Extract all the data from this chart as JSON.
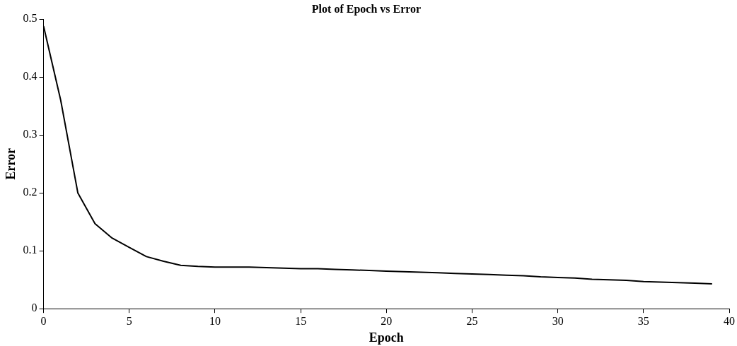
{
  "chart_data": {
    "type": "line",
    "title": "Plot of Epoch vs Error",
    "xlabel": "Epoch",
    "ylabel": "Error",
    "x": [
      0,
      1,
      2,
      3,
      4,
      5,
      6,
      7,
      8,
      9,
      10,
      11,
      12,
      13,
      14,
      15,
      16,
      17,
      18,
      19,
      20,
      21,
      22,
      23,
      24,
      25,
      26,
      27,
      28,
      29,
      30,
      31,
      32,
      33,
      34,
      35,
      36,
      37,
      38,
      39
    ],
    "series": [
      {
        "color": "#000000",
        "values": [
          0.488,
          0.36,
          0.2,
          0.147,
          0.122,
          0.106,
          0.09,
          0.082,
          0.075,
          0.073,
          0.072,
          0.072,
          0.072,
          0.071,
          0.07,
          0.069,
          0.069,
          0.068,
          0.067,
          0.066,
          0.065,
          0.064,
          0.063,
          0.062,
          0.061,
          0.06,
          0.059,
          0.058,
          0.057,
          0.055,
          0.054,
          0.053,
          0.051,
          0.05,
          0.049,
          0.047,
          0.046,
          0.045,
          0.044,
          0.043
        ]
      }
    ],
    "xlim": [
      0,
      40
    ],
    "xticks": [
      0,
      5,
      10,
      15,
      20,
      25,
      30,
      35,
      40
    ],
    "ylim": [
      0,
      0.5
    ],
    "yticks": [
      0,
      0.1,
      0.2,
      0.3,
      0.4,
      0.5
    ],
    "grid": false,
    "legend": false,
    "marker": "none",
    "line_style": "solid"
  }
}
